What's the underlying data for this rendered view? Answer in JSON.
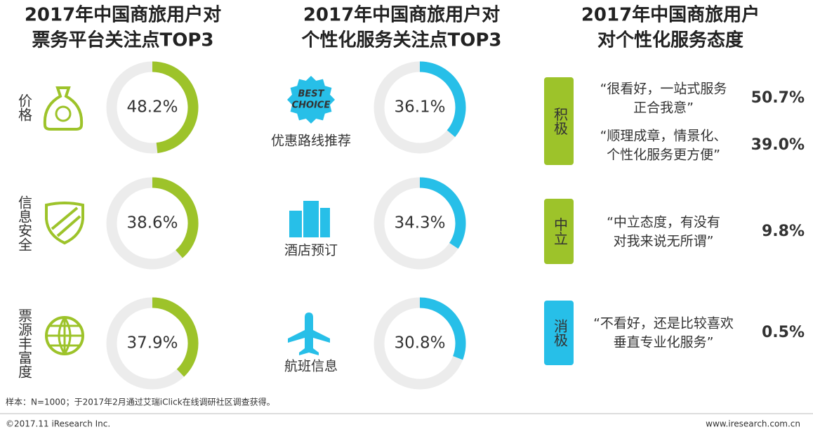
{
  "panels": [
    {
      "title": [
        "2017年中国商旅用户对",
        "票务平台关注点TOP3"
      ],
      "color": "#9dc32a",
      "items": [
        {
          "label": "价格",
          "value": 48.2,
          "value_label": "48.2%"
        },
        {
          "label": "信息安全",
          "value": 38.6,
          "value_label": "38.6%"
        },
        {
          "label": "票源丰富度",
          "value": 37.9,
          "value_label": "37.9%"
        }
      ]
    },
    {
      "title": [
        "2017年中国商旅用户对",
        "个性化服务关注点TOP3"
      ],
      "color": "#27bfe8",
      "badge": [
        "BEST",
        "CHOICE"
      ],
      "items": [
        {
          "label": "优惠路线推荐",
          "value": 36.1,
          "value_label": "36.1%"
        },
        {
          "label": "酒店预订",
          "value": 34.3,
          "value_label": "34.3%"
        },
        {
          "label": "航班信息",
          "value": 30.8,
          "value_label": "30.8%"
        }
      ]
    },
    {
      "title": [
        "2017年中国商旅用户",
        "对个性化服务态度"
      ],
      "groups": [
        {
          "label": "积极",
          "color": "#9dc32a",
          "items": [
            {
              "quote": [
                "“很看好，一站式服务",
                "正合我意”"
              ],
              "value_label": "50.7%"
            },
            {
              "quote": [
                "“顺理成章，情景化、",
                "个性化服务更方便”"
              ],
              "value_label": "39.0%"
            }
          ]
        },
        {
          "label": "中立",
          "color": "#9dc32a",
          "items": [
            {
              "quote": [
                "“中立态度，有没有",
                "对我来说无所谓”"
              ],
              "value_label": "9.8%"
            }
          ]
        },
        {
          "label": "消极",
          "color": "#27bfe8",
          "items": [
            {
              "quote": [
                "“不看好，还是比较喜欢",
                "垂直专业化服务”"
              ],
              "value_label": "0.5%"
            }
          ]
        }
      ]
    }
  ],
  "footer": {
    "note": "样本：N=1000；于2017年2月通过艾瑞iClick在线调研社区调查获得。",
    "copyright": "©2017.11 iResearch Inc.",
    "url": "www.iresearch.com.cn"
  }
}
